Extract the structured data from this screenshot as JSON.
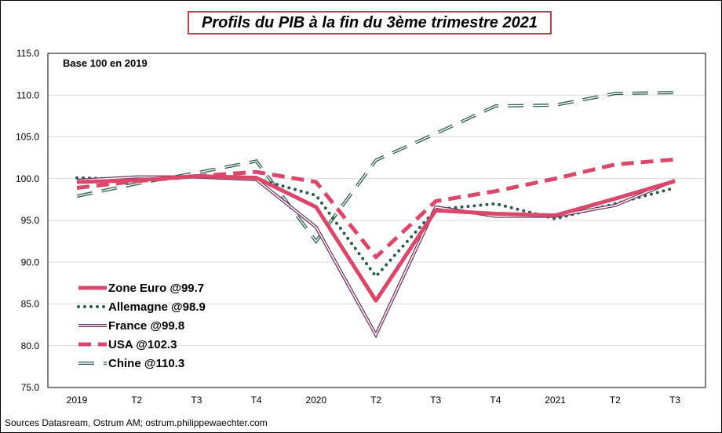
{
  "chart_data": {
    "type": "line",
    "title": "Profils du PIB à la fin du 3ème trimestre 2021",
    "note": "Base 100 en 2019",
    "source": "Sources Datasream, Ostrum AM; ostrum.philippewaechter.com",
    "categories": [
      "2019",
      "T2",
      "T3",
      "T4",
      "2020",
      "T2",
      "T3",
      "T4",
      "2021",
      "T2",
      "T3"
    ],
    "ylim": [
      75,
      115
    ],
    "yticks": [
      "75.0",
      "80.0",
      "85.0",
      "90.0",
      "95.0",
      "100.0",
      "105.0",
      "110.0",
      "115.0"
    ],
    "grid": true,
    "legend_position": "bottom-left",
    "series": [
      {
        "name": "Zone Euro @99.7",
        "values": [
          99.6,
          99.8,
          100.3,
          100.1,
          96.6,
          85.4,
          96.2,
          95.8,
          95.6,
          97.6,
          99.7
        ],
        "color": "#d9486a",
        "style": "solid-thick"
      },
      {
        "name": "Allemagne @98.9",
        "values": [
          100.1,
          99.9,
          100.2,
          100.0,
          98.0,
          88.3,
          96.3,
          97.0,
          95.2,
          97.0,
          98.9
        ],
        "color": "#2e5a4e",
        "style": "dotted"
      },
      {
        "name": "France @99.8",
        "values": [
          99.8,
          100.2,
          100.2,
          99.9,
          94.2,
          81.3,
          96.6,
          95.5,
          95.5,
          96.8,
          99.8
        ],
        "color": "#6b2b58",
        "style": "double"
      },
      {
        "name": "USA @102.3",
        "values": [
          98.9,
          99.7,
          100.3,
          100.8,
          99.6,
          90.6,
          97.3,
          98.5,
          100.0,
          101.7,
          102.3
        ],
        "color": "#d9486a",
        "style": "dashed"
      },
      {
        "name": "Chine @110.3",
        "values": [
          97.9,
          99.4,
          100.7,
          102.1,
          92.5,
          102.2,
          105.4,
          108.7,
          108.8,
          110.2,
          110.3
        ],
        "color": "#2e5a4e",
        "style": "long-dash-double"
      }
    ]
  }
}
